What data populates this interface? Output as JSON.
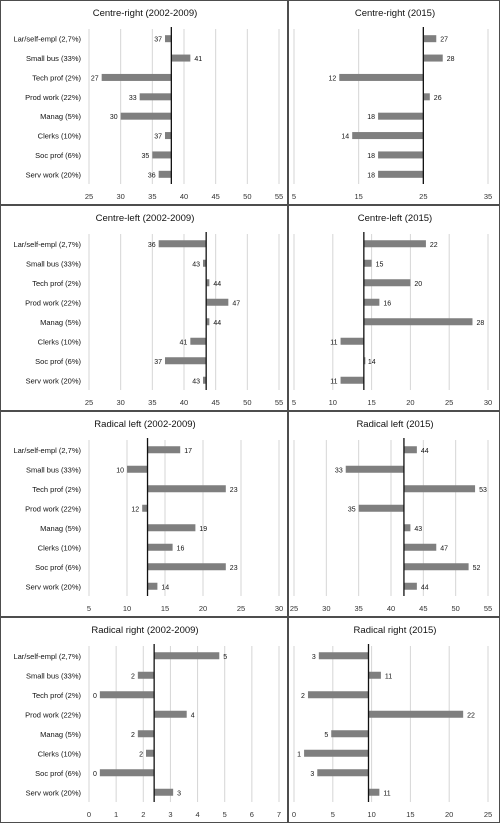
{
  "chart_data": [
    {
      "type": "bar",
      "title": "Centre-right (2002-2009)",
      "categories": [
        "Lar/self-empl (2,7%)",
        "Small bus (33%)",
        "Tech prof (2%)",
        "Prod work (22%)",
        "Manag (5%)",
        "Clerks (10%)",
        "Soc prof (6%)",
        "Serv work (20%)"
      ],
      "values": [
        37,
        41,
        27,
        33,
        30,
        37,
        35,
        36
      ],
      "baseline": 38,
      "xlim": [
        25,
        55
      ],
      "xticks": [
        25,
        30,
        35,
        40,
        45,
        50,
        55
      ],
      "grid": true,
      "bar_color": "#7f7f7f"
    },
    {
      "type": "bar",
      "title": "Centre-right (2015)",
      "categories": [
        "",
        "",
        "",
        "",
        "",
        "",
        "",
        ""
      ],
      "values": [
        27,
        28,
        12,
        26,
        18,
        14,
        18,
        18
      ],
      "baseline": 25,
      "xlim": [
        5,
        35
      ],
      "xticks": [
        5,
        15,
        25,
        35
      ],
      "grid": true,
      "bar_color": "#7f7f7f"
    },
    {
      "type": "bar",
      "title": "Centre-left (2002-2009)",
      "categories": [
        "Lar/self-empl (2,7%)",
        "Small bus (33%)",
        "Tech prof (2%)",
        "Prod work (22%)",
        "Manag (5%)",
        "Clerks (10%)",
        "Soc prof (6%)",
        "Serv work (20%)"
      ],
      "values": [
        36,
        43,
        44,
        47,
        44,
        41,
        37,
        43
      ],
      "baseline": 43.5,
      "xlim": [
        25,
        55
      ],
      "xticks": [
        25,
        30,
        35,
        40,
        45,
        50,
        55
      ],
      "grid": true,
      "bar_color": "#7f7f7f"
    },
    {
      "type": "bar",
      "title": "Centre-left (2015)",
      "categories": [
        "",
        "",
        "",
        "",
        "",
        "",
        "",
        ""
      ],
      "values": [
        22,
        15,
        20,
        16,
        28,
        11,
        14,
        11
      ],
      "baseline": 14,
      "xlim": [
        5,
        30
      ],
      "xticks": [
        5,
        10,
        15,
        20,
        25,
        30
      ],
      "grid": true,
      "bar_color": "#7f7f7f"
    },
    {
      "type": "bar",
      "title": "Radical left (2002-2009)",
      "categories": [
        "Lar/self-empl (2,7%)",
        "Small bus (33%)",
        "Tech prof (2%)",
        "Prod work (22%)",
        "Manag (5%)",
        "Clerks (10%)",
        "Soc prof (6%)",
        "Serv work (20%)"
      ],
      "values": [
        17,
        10,
        23,
        12,
        19,
        16,
        23,
        14
      ],
      "baseline": 12.7,
      "xlim": [
        5,
        30
      ],
      "xticks": [
        5,
        10,
        15,
        20,
        25,
        30
      ],
      "grid": true,
      "bar_color": "#7f7f7f"
    },
    {
      "type": "bar",
      "title": "Radical left (2015)",
      "categories": [
        "",
        "",
        "",
        "",
        "",
        "",
        "",
        ""
      ],
      "values": [
        44,
        33,
        53,
        35,
        43,
        47,
        52,
        44
      ],
      "baseline": 42,
      "xlim": [
        25,
        55
      ],
      "xticks": [
        25,
        30,
        35,
        40,
        45,
        50,
        55
      ],
      "grid": true,
      "bar_color": "#7f7f7f"
    },
    {
      "type": "bar",
      "title": "Radical right (2002-2009)",
      "categories": [
        "Lar/self-empl (2,7%)",
        "Small bus (33%)",
        "Tech prof (2%)",
        "Prod work (22%)",
        "Manag (5%)",
        "Clerks (10%)",
        "Soc prof (6%)",
        "Serv work (20%)"
      ],
      "values": [
        5,
        2,
        0,
        4,
        2,
        2,
        0,
        3
      ],
      "bar_values": [
        4.8,
        1.8,
        0.4,
        3.6,
        1.8,
        2.1,
        0.4,
        3.1
      ],
      "baseline": 2.4,
      "xlim": [
        0,
        7
      ],
      "xticks": [
        0,
        1,
        2,
        3,
        4,
        5,
        6,
        7
      ],
      "grid": true,
      "bar_color": "#7f7f7f"
    },
    {
      "type": "bar",
      "title": "Radical right (2015)",
      "categories": [
        "",
        "",
        "",
        "",
        "",
        "",
        "",
        ""
      ],
      "values": [
        3,
        11,
        2,
        22,
        5,
        1,
        3,
        11
      ],
      "bar_values": [
        3.2,
        11.2,
        1.8,
        21.8,
        4.8,
        1.3,
        3.0,
        11.0
      ],
      "baseline": 9.6,
      "xlim": [
        0,
        25
      ],
      "xticks": [
        0,
        5,
        10,
        15,
        20,
        25
      ],
      "grid": true,
      "bar_color": "#7f7f7f"
    }
  ]
}
